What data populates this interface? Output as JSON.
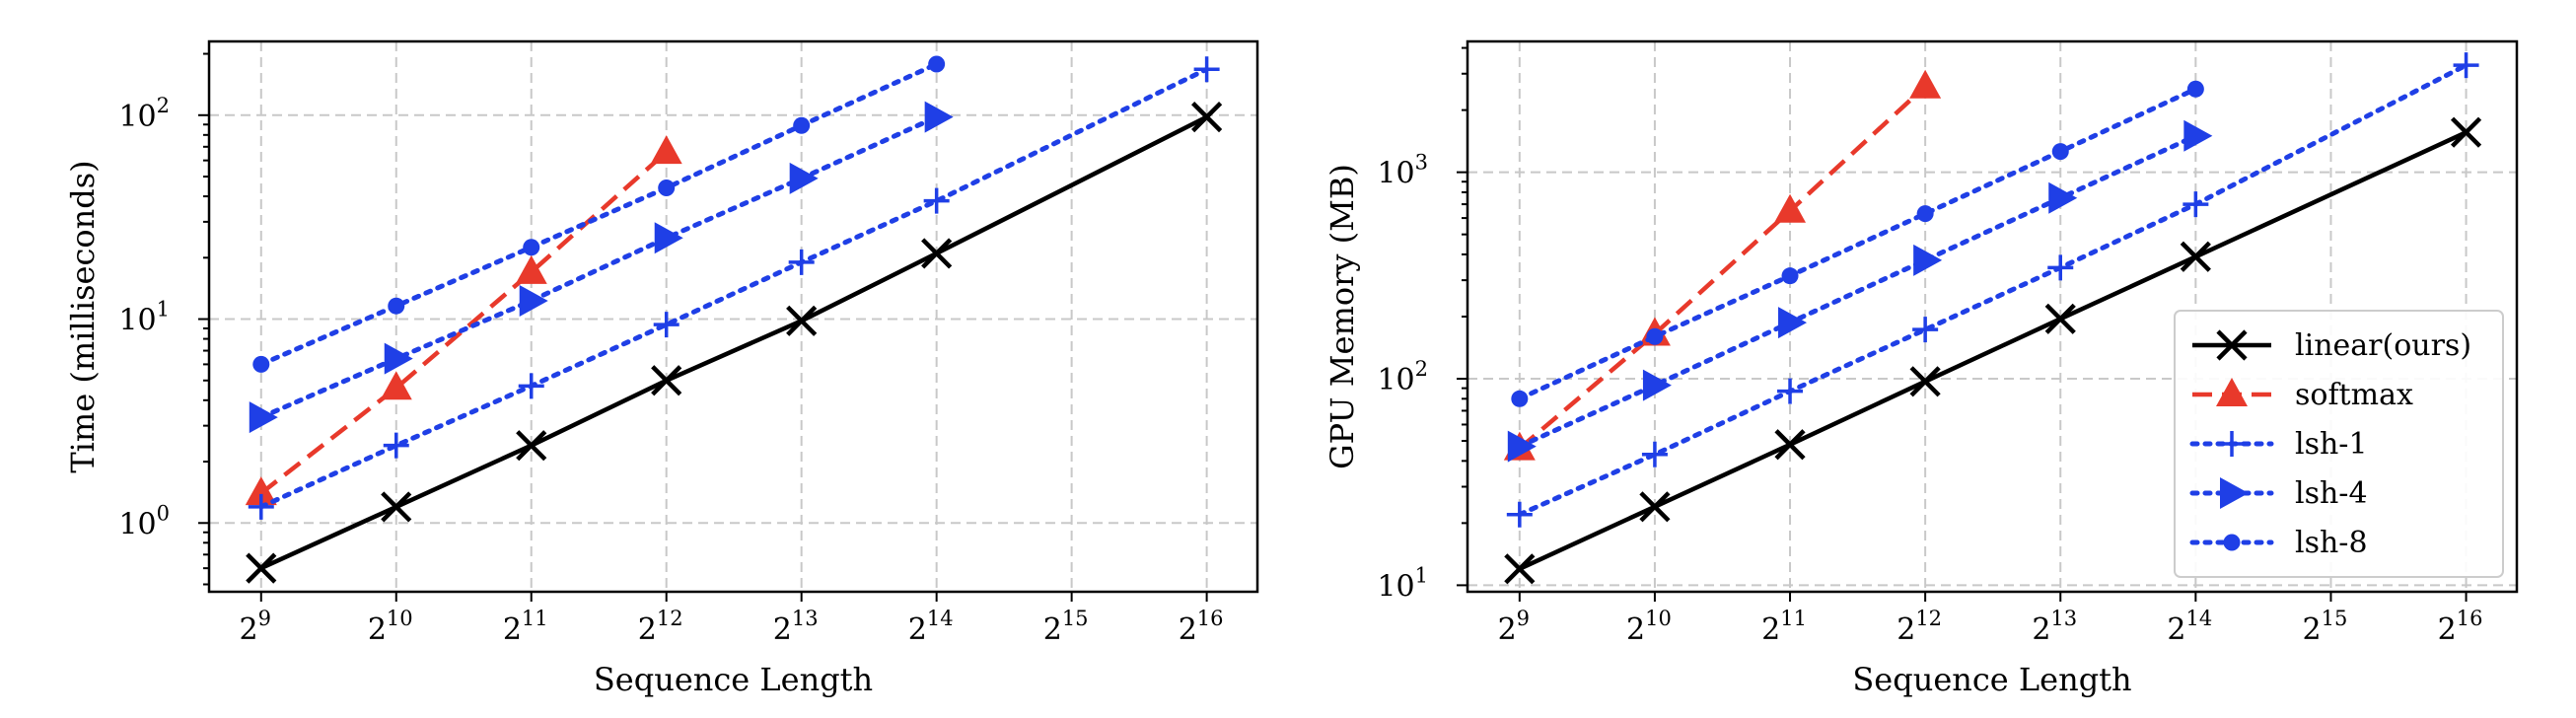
{
  "chart_data": [
    {
      "type": "line",
      "title": "",
      "xlabel": "Sequence Length",
      "ylabel": "Time (milliseconds)",
      "xscale": "log2",
      "yscale": "log10",
      "x_ticks": [
        {
          "base": "2",
          "exp": "9",
          "value": 512
        },
        {
          "base": "2",
          "exp": "10",
          "value": 1024
        },
        {
          "base": "2",
          "exp": "11",
          "value": 2048
        },
        {
          "base": "2",
          "exp": "12",
          "value": 4096
        },
        {
          "base": "2",
          "exp": "13",
          "value": 8192
        },
        {
          "base": "2",
          "exp": "14",
          "value": 16384
        },
        {
          "base": "2",
          "exp": "15",
          "value": 32768
        },
        {
          "base": "2",
          "exp": "16",
          "value": 65536
        }
      ],
      "y_ticks": [
        {
          "base": "10",
          "exp": "0",
          "value": 1
        },
        {
          "base": "10",
          "exp": "1",
          "value": 10
        },
        {
          "base": "10",
          "exp": "2",
          "value": 100
        }
      ],
      "xlim": [
        392,
        85000
      ],
      "ylim": [
        0.46,
        230
      ],
      "grid": true,
      "legend": false,
      "series": [
        {
          "name": "linear(ours)",
          "color": "#000000",
          "marker": "x",
          "linestyle": "solid",
          "x": [
            512,
            1024,
            2048,
            4096,
            8192,
            16384,
            65536
          ],
          "y": [
            0.6,
            1.2,
            2.4,
            5.0,
            9.8,
            21,
            98
          ]
        },
        {
          "name": "softmax",
          "color": "#e8392b",
          "marker": "triangle-up",
          "linestyle": "dashed",
          "x": [
            512,
            1024,
            2048,
            4096
          ],
          "y": [
            1.4,
            4.6,
            17,
            66
          ]
        },
        {
          "name": "lsh-1",
          "color": "#1f3fe6",
          "marker": "plus",
          "linestyle": "dotted",
          "x": [
            512,
            1024,
            2048,
            4096,
            8192,
            16384,
            65536
          ],
          "y": [
            1.2,
            2.4,
            4.7,
            9.4,
            19,
            38,
            168
          ]
        },
        {
          "name": "lsh-4",
          "color": "#1f3fe6",
          "marker": "triangle-right",
          "linestyle": "dotted",
          "x": [
            512,
            1024,
            2048,
            4096,
            8192,
            16384
          ],
          "y": [
            3.3,
            6.4,
            12.3,
            25,
            49,
            98
          ]
        },
        {
          "name": "lsh-8",
          "color": "#1f3fe6",
          "marker": "circle",
          "linestyle": "dotted",
          "x": [
            512,
            1024,
            2048,
            4096,
            8192,
            16384
          ],
          "y": [
            6.0,
            11.6,
            22.5,
            44,
            89,
            178
          ]
        }
      ]
    },
    {
      "type": "line",
      "title": "",
      "xlabel": "Sequence Length",
      "ylabel": "GPU Memory (MB)",
      "xscale": "log2",
      "yscale": "log10",
      "x_ticks": [
        {
          "base": "2",
          "exp": "9",
          "value": 512
        },
        {
          "base": "2",
          "exp": "10",
          "value": 1024
        },
        {
          "base": "2",
          "exp": "11",
          "value": 2048
        },
        {
          "base": "2",
          "exp": "12",
          "value": 4096
        },
        {
          "base": "2",
          "exp": "13",
          "value": 8192
        },
        {
          "base": "2",
          "exp": "14",
          "value": 16384
        },
        {
          "base": "2",
          "exp": "15",
          "value": 32768
        },
        {
          "base": "2",
          "exp": "16",
          "value": 65536
        }
      ],
      "y_ticks": [
        {
          "base": "10",
          "exp": "1",
          "value": 10
        },
        {
          "base": "10",
          "exp": "2",
          "value": 100
        },
        {
          "base": "10",
          "exp": "3",
          "value": 1000
        }
      ],
      "xlim": [
        392,
        85000
      ],
      "ylim": [
        9.3,
        4300
      ],
      "grid": true,
      "legend": true,
      "legend_position": "lower-right",
      "series": [
        {
          "name": "linear(ours)",
          "color": "#000000",
          "marker": "x",
          "linestyle": "solid",
          "x": [
            512,
            1024,
            2048,
            4096,
            8192,
            16384,
            65536
          ],
          "y": [
            12,
            24,
            48,
            97,
            195,
            390,
            1560
          ]
        },
        {
          "name": "softmax",
          "color": "#e8392b",
          "marker": "triangle-up",
          "linestyle": "dashed",
          "x": [
            512,
            1024,
            2048,
            4096
          ],
          "y": [
            46,
            165,
            650,
            2600
          ]
        },
        {
          "name": "lsh-1",
          "color": "#1f3fe6",
          "marker": "plus",
          "linestyle": "dotted",
          "x": [
            512,
            1024,
            2048,
            4096,
            8192,
            16384,
            65536
          ],
          "y": [
            22,
            43,
            87,
            173,
            345,
            700,
            3300
          ]
        },
        {
          "name": "lsh-4",
          "color": "#1f3fe6",
          "marker": "triangle-right",
          "linestyle": "dotted",
          "x": [
            512,
            1024,
            2048,
            4096,
            8192,
            16384
          ],
          "y": [
            47,
            93,
            187,
            375,
            750,
            1500
          ]
        },
        {
          "name": "lsh-8",
          "color": "#1f3fe6",
          "marker": "circle",
          "linestyle": "dotted",
          "x": [
            512,
            1024,
            2048,
            4096,
            8192,
            16384
          ],
          "y": [
            80,
            160,
            315,
            630,
            1260,
            2530
          ]
        }
      ]
    }
  ]
}
